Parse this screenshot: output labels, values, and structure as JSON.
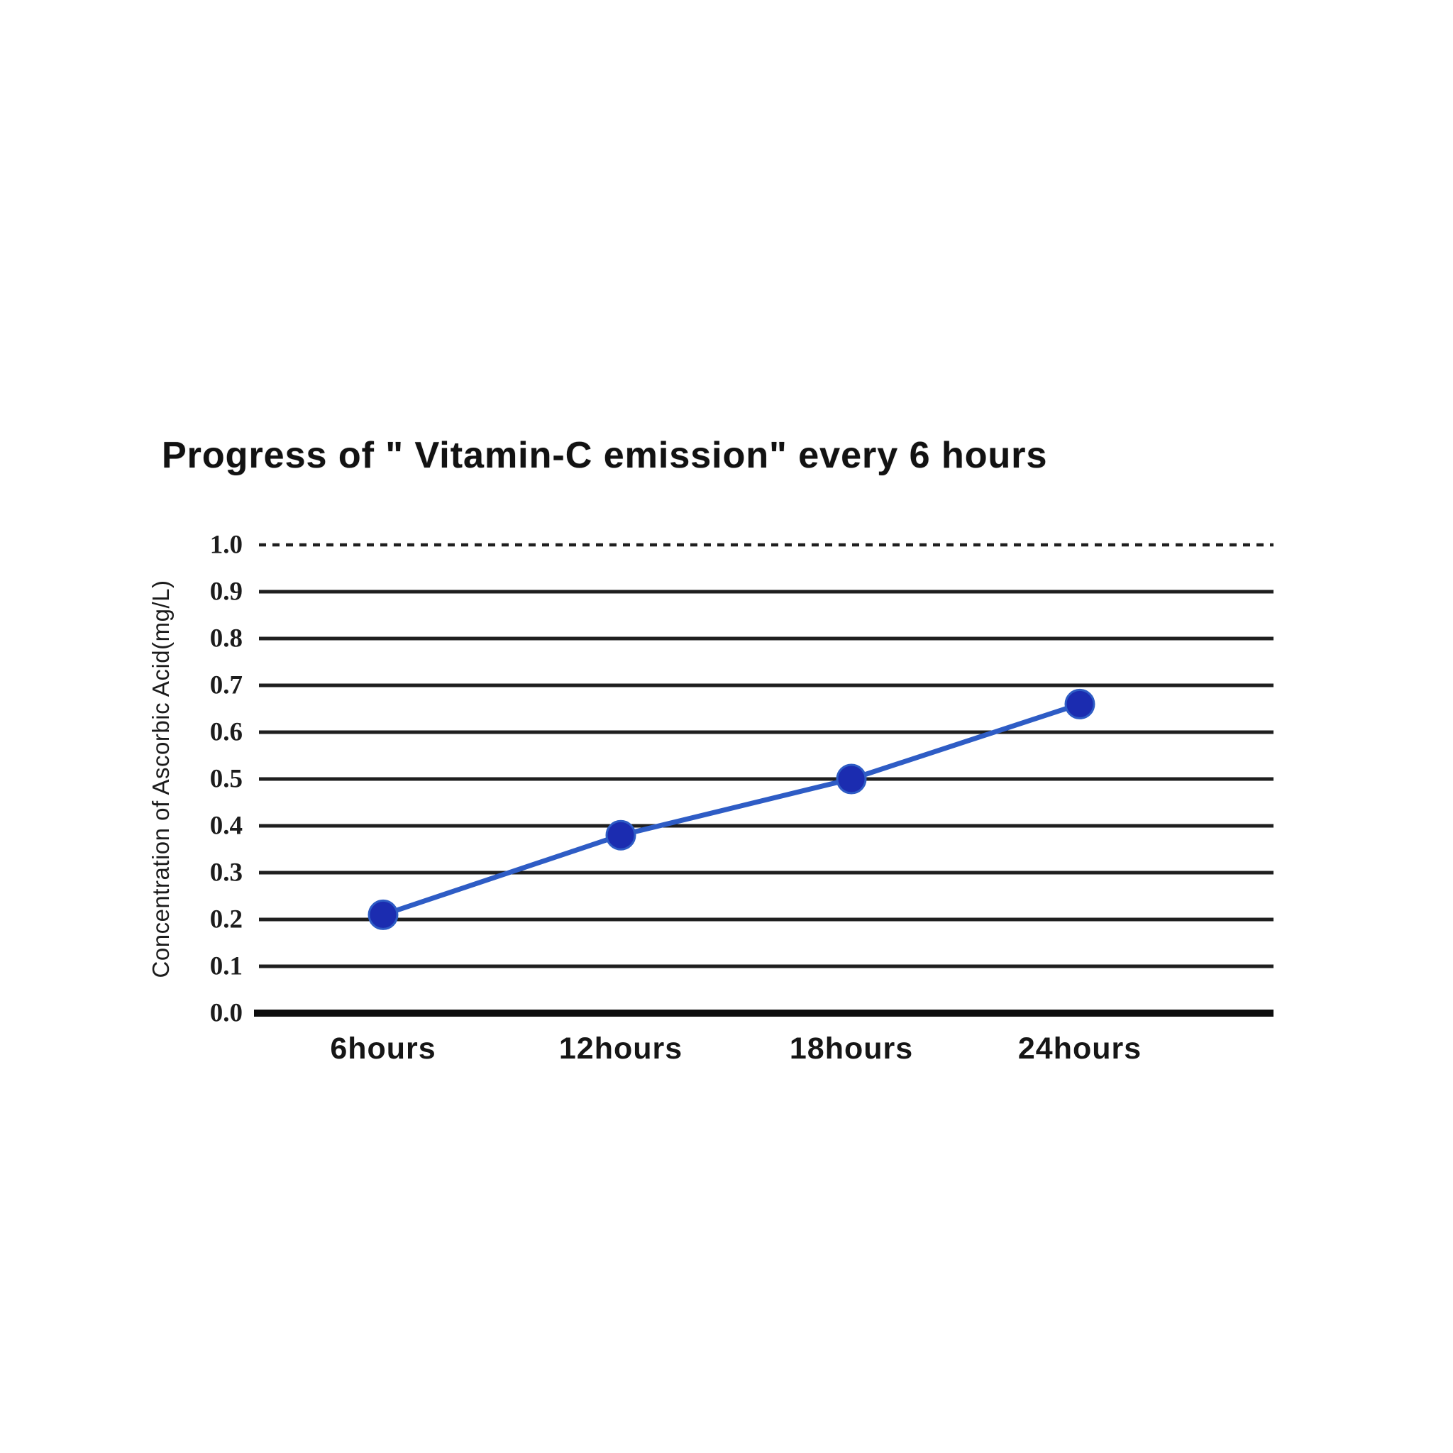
{
  "page": {
    "background_color": "#ffffff",
    "text_color": "#121212"
  },
  "chart_data": {
    "type": "line",
    "title": "Progress of \" Vitamin-C emission\" every 6 hours",
    "categories": [
      "6hours",
      "12hours",
      "18hours",
      "24hours"
    ],
    "series": [
      {
        "name": "Concentration of Ascorbic Acid",
        "values": [
          0.21,
          0.38,
          0.5,
          0.66
        ]
      }
    ],
    "xlabel": "",
    "ylabel": "Concentration of Ascorbic Acid(mg/L)",
    "ylim": [
      0.0,
      1.0
    ],
    "ytick_step": 0.1,
    "yticks": [
      "1.0",
      "0.9",
      "0.8",
      "0.7",
      "0.6",
      "0.5",
      "0.4",
      "0.3",
      "0.2",
      "0.1",
      "0.0"
    ],
    "grid": "horizontal-only",
    "grid_notes": "top 1.0 gridline dashed, 0.0 baseline thick solid, no vertical axis line",
    "legend": "none",
    "line_color": "#2e5cc5",
    "marker_color": "#1b2cb0",
    "gridline_color": "#1f1f1f",
    "baseline_color": "#0d0d0d"
  }
}
